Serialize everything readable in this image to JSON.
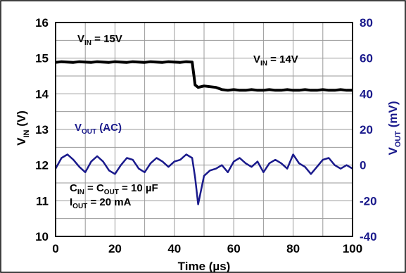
{
  "chart_data": {
    "type": "line",
    "title": "",
    "colors": {
      "vin": "#000000",
      "vout": "#1a1a8c",
      "grid": "#9a9a9a"
    },
    "grid": true,
    "x": [
      0,
      2,
      4,
      6,
      8,
      10,
      12,
      14,
      16,
      18,
      20,
      22,
      24,
      26,
      28,
      30,
      32,
      34,
      36,
      38,
      40,
      42,
      44,
      46,
      47,
      48,
      50,
      52,
      54,
      56,
      58,
      60,
      62,
      64,
      66,
      68,
      70,
      72,
      74,
      76,
      78,
      80,
      82,
      84,
      86,
      88,
      90,
      92,
      94,
      96,
      98,
      100
    ],
    "xlim": [
      0,
      100
    ],
    "x_ticks": [
      "0",
      "20",
      "40",
      "60",
      "80",
      "100"
    ],
    "xlabel": {
      "main": "Time (µs)"
    },
    "y_left": {
      "label_main": "V",
      "label_sub": "IN",
      "label_tail": " (V)",
      "ylim": [
        10,
        16
      ],
      "ticks": [
        "10",
        "11",
        "12",
        "13",
        "14",
        "15",
        "16"
      ]
    },
    "y_right": {
      "label_main": "V",
      "label_sub": "OUT",
      "label_tail": " (mV)",
      "ylim": [
        -40,
        80
      ],
      "ticks": [
        "-40",
        "-20",
        "0",
        "20",
        "40",
        "60",
        "80"
      ]
    },
    "series": [
      {
        "name": "VIN",
        "axis": "left",
        "values": [
          14.88,
          14.9,
          14.89,
          14.88,
          14.9,
          14.89,
          14.88,
          14.9,
          14.89,
          14.88,
          14.9,
          14.89,
          14.88,
          14.9,
          14.89,
          14.88,
          14.9,
          14.89,
          14.88,
          14.9,
          14.89,
          14.88,
          14.9,
          14.89,
          14.25,
          14.18,
          14.22,
          14.2,
          14.18,
          14.12,
          14.1,
          14.12,
          14.1,
          14.1,
          14.12,
          14.1,
          14.1,
          14.12,
          14.1,
          14.1,
          14.12,
          14.1,
          14.1,
          14.12,
          14.1,
          14.1,
          14.12,
          14.1,
          14.1,
          14.12,
          14.1,
          14.1
        ]
      },
      {
        "name": "VOUT (AC)",
        "axis": "right",
        "values": [
          -2,
          4,
          6,
          3,
          -1,
          -4,
          2,
          5,
          2,
          -3,
          -5,
          0,
          4,
          3,
          -2,
          -4,
          1,
          4,
          2,
          -1,
          2,
          3,
          6,
          4,
          -7,
          -22,
          -6,
          -3,
          -2,
          0,
          -4,
          2,
          4,
          1,
          -1,
          2,
          -4,
          1,
          3,
          1,
          -2,
          6,
          1,
          -1,
          -5,
          -1,
          3,
          4,
          0,
          -2,
          0,
          -2
        ]
      }
    ],
    "annotations": {
      "vin_high": {
        "main": "V",
        "sub": "IN",
        "tail": " = 15V"
      },
      "vin_low": {
        "main": "V",
        "sub": "IN",
        "tail": " = 14V"
      },
      "vout_ac": {
        "main": "V",
        "sub": "OUT",
        "tail": " (AC)"
      },
      "conditions_line1": {
        "a_main": "C",
        "a_sub": "IN",
        "mid": " = C",
        "b_sub": "OUT",
        "tail": " = 10 µF"
      },
      "conditions_line2": {
        "main": "I",
        "sub": "OUT",
        "tail": " = 20 mA"
      }
    }
  }
}
